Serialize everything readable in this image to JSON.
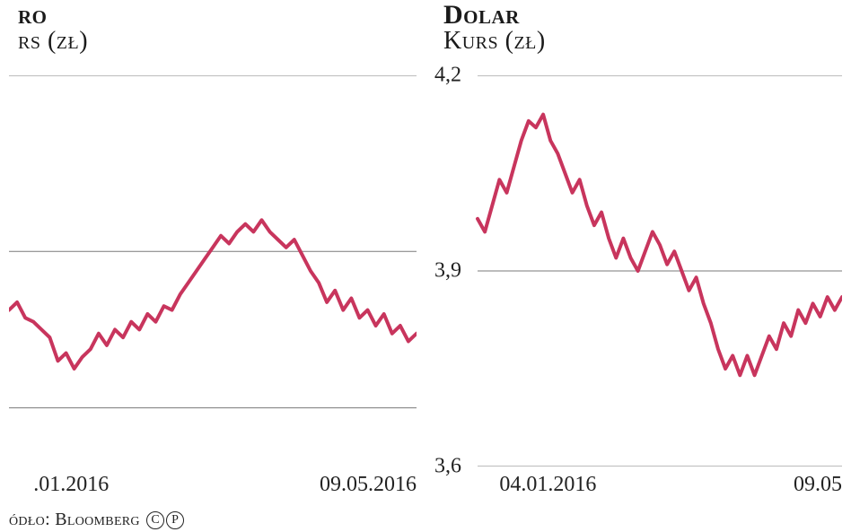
{
  "source_label": "ódło: Bloomberg",
  "charts": [
    {
      "title_main": "ro",
      "title_sub": "rs (zł)",
      "type": "line",
      "line_color": "#c8355d",
      "line_width": 4,
      "grid_color": "#7a7a7a",
      "background_color": "#ffffff",
      "xlim": [
        0,
        100
      ],
      "ylim": [
        0,
        100
      ],
      "yticks": [
        {
          "pos": 15,
          "label": ""
        },
        {
          "pos": 55,
          "label": ""
        },
        {
          "pos": 100,
          "label": ""
        }
      ],
      "xticks": [
        {
          "pos": 6,
          "label": ".01.2016",
          "align": "start"
        },
        {
          "pos": 100,
          "label": "09.05.2016",
          "align": "end"
        }
      ],
      "series": [
        [
          0,
          40
        ],
        [
          2,
          42
        ],
        [
          4,
          38
        ],
        [
          6,
          37
        ],
        [
          8,
          35
        ],
        [
          10,
          33
        ],
        [
          12,
          27
        ],
        [
          14,
          29
        ],
        [
          16,
          25
        ],
        [
          18,
          28
        ],
        [
          20,
          30
        ],
        [
          22,
          34
        ],
        [
          24,
          31
        ],
        [
          26,
          35
        ],
        [
          28,
          33
        ],
        [
          30,
          37
        ],
        [
          32,
          35
        ],
        [
          34,
          39
        ],
        [
          36,
          37
        ],
        [
          38,
          41
        ],
        [
          40,
          40
        ],
        [
          42,
          44
        ],
        [
          44,
          47
        ],
        [
          46,
          50
        ],
        [
          48,
          53
        ],
        [
          50,
          56
        ],
        [
          52,
          59
        ],
        [
          54,
          57
        ],
        [
          56,
          60
        ],
        [
          58,
          62
        ],
        [
          60,
          60
        ],
        [
          62,
          63
        ],
        [
          64,
          60
        ],
        [
          66,
          58
        ],
        [
          68,
          56
        ],
        [
          70,
          58
        ],
        [
          72,
          54
        ],
        [
          74,
          50
        ],
        [
          76,
          47
        ],
        [
          78,
          42
        ],
        [
          80,
          45
        ],
        [
          82,
          40
        ],
        [
          84,
          43
        ],
        [
          86,
          38
        ],
        [
          88,
          40
        ],
        [
          90,
          36
        ],
        [
          92,
          39
        ],
        [
          94,
          34
        ],
        [
          96,
          36
        ],
        [
          98,
          32
        ],
        [
          100,
          34
        ]
      ]
    },
    {
      "title_main": "Dolar",
      "title_sub": "Kurs (zł)",
      "type": "line",
      "line_color": "#c8355d",
      "line_width": 4,
      "grid_color": "#7a7a7a",
      "background_color": "#ffffff",
      "xlim": [
        0,
        100
      ],
      "ylim": [
        3.6,
        4.2
      ],
      "yticks": [
        {
          "pos": 4.2,
          "label": "4,2"
        },
        {
          "pos": 3.9,
          "label": "3,9"
        },
        {
          "pos": 3.6,
          "label": "3,6"
        }
      ],
      "xticks": [
        {
          "pos": 6,
          "label": "04.01.2016",
          "align": "start"
        },
        {
          "pos": 100,
          "label": "09.05",
          "align": "end"
        }
      ],
      "series": [
        [
          0,
          3.98
        ],
        [
          2,
          3.96
        ],
        [
          4,
          4.0
        ],
        [
          6,
          4.04
        ],
        [
          8,
          4.02
        ],
        [
          10,
          4.06
        ],
        [
          12,
          4.1
        ],
        [
          14,
          4.13
        ],
        [
          16,
          4.12
        ],
        [
          18,
          4.14
        ],
        [
          20,
          4.1
        ],
        [
          22,
          4.08
        ],
        [
          24,
          4.05
        ],
        [
          26,
          4.02
        ],
        [
          28,
          4.04
        ],
        [
          30,
          4.0
        ],
        [
          32,
          3.97
        ],
        [
          34,
          3.99
        ],
        [
          36,
          3.95
        ],
        [
          38,
          3.92
        ],
        [
          40,
          3.95
        ],
        [
          42,
          3.92
        ],
        [
          44,
          3.9
        ],
        [
          46,
          3.93
        ],
        [
          48,
          3.96
        ],
        [
          50,
          3.94
        ],
        [
          52,
          3.91
        ],
        [
          54,
          3.93
        ],
        [
          56,
          3.9
        ],
        [
          58,
          3.87
        ],
        [
          60,
          3.89
        ],
        [
          62,
          3.85
        ],
        [
          64,
          3.82
        ],
        [
          66,
          3.78
        ],
        [
          68,
          3.75
        ],
        [
          70,
          3.77
        ],
        [
          72,
          3.74
        ],
        [
          74,
          3.77
        ],
        [
          76,
          3.74
        ],
        [
          78,
          3.77
        ],
        [
          80,
          3.8
        ],
        [
          82,
          3.78
        ],
        [
          84,
          3.82
        ],
        [
          86,
          3.8
        ],
        [
          88,
          3.84
        ],
        [
          90,
          3.82
        ],
        [
          92,
          3.85
        ],
        [
          94,
          3.83
        ],
        [
          96,
          3.86
        ],
        [
          98,
          3.84
        ],
        [
          100,
          3.86
        ]
      ]
    }
  ]
}
